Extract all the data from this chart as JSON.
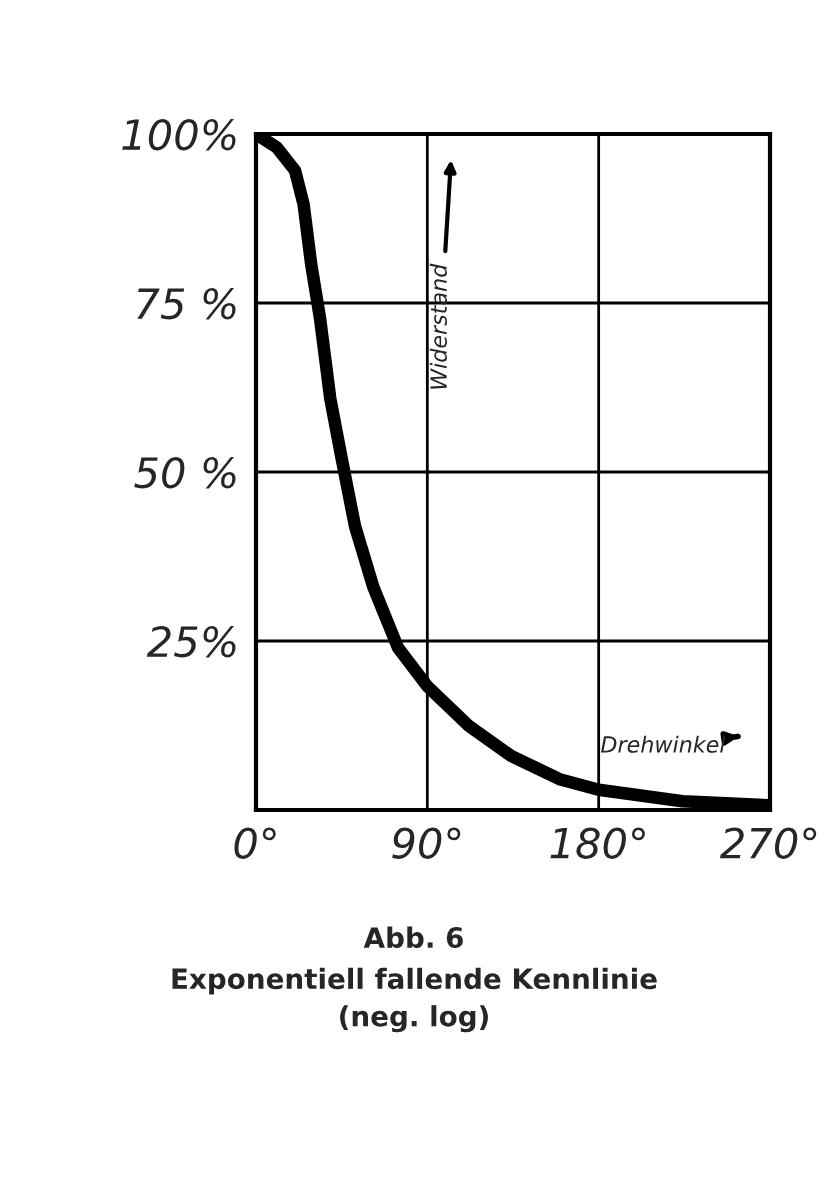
{
  "chart_data": {
    "type": "line",
    "title": "Abb. 6",
    "subtitle": "Exponentiell fallende Kennlinie\n(neg. log)",
    "xlabel": "Drehwinkel",
    "ylabel": "Widerstand",
    "x": [
      0,
      11,
      20.5,
      25,
      29,
      33.6,
      39,
      45,
      52,
      61.6,
      74.6,
      90,
      112,
      134,
      160,
      180,
      224,
      270
    ],
    "series": [
      {
        "color": "#000000",
        "values": [
          100,
          98,
          94.6,
          89.6,
          80.7,
          72.8,
          60.9,
          52,
          42,
          33,
          24,
          18.3,
          12.4,
          8,
          4.5,
          3,
          1.3,
          0.7
        ]
      }
    ],
    "xlim": [
      0,
      270
    ],
    "ylim": [
      0,
      100
    ],
    "xticks": [
      {
        "value": 0,
        "label": "0°"
      },
      {
        "value": 90,
        "label": "90°"
      },
      {
        "value": 180,
        "label": "180°"
      },
      {
        "value": 270,
        "label": "270°"
      }
    ],
    "yticks": [
      {
        "value": 25,
        "label": "25%"
      },
      {
        "value": 50,
        "label": "50 %"
      },
      {
        "value": 75,
        "label": "75 %"
      },
      {
        "value": 100,
        "label": "100%"
      }
    ],
    "grid": true,
    "line_style": "solid"
  }
}
